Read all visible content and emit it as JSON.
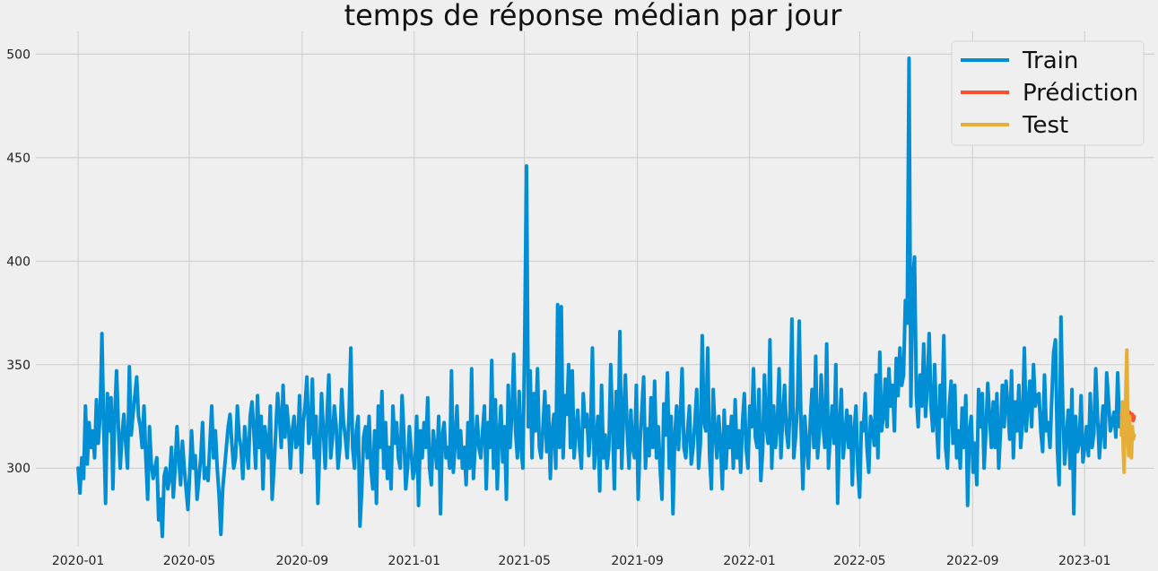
{
  "chart_data": {
    "type": "line",
    "title": "temps de réponse médian par jour",
    "xlabel": "",
    "ylabel": "",
    "x_range": [
      "2019-11-16",
      "2023-03-18"
    ],
    "ylim": [
      262,
      511
    ],
    "x_ticks": [
      "2020-01",
      "2020-05",
      "2020-09",
      "2021-01",
      "2021-05",
      "2021-09",
      "2022-01",
      "2022-05",
      "2022-09",
      "2023-01"
    ],
    "y_ticks": [
      300,
      350,
      400,
      450,
      500
    ],
    "grid": true,
    "legend_position": "top-right",
    "series": [
      {
        "name": "Train",
        "color": "#008fd5",
        "x_start": "2020-01-01",
        "x_end": "2023-02-10",
        "values": [
          300,
          288,
          305,
          295,
          330,
          302,
          322,
          310,
          318,
          305,
          333,
          312,
          325,
          365,
          320,
          283,
          336,
          318,
          334,
          290,
          325,
          347,
          320,
          300,
          316,
          326,
          312,
          300,
          349,
          316,
          326,
          335,
          344,
          325,
          320,
          310,
          330,
          305,
          285,
          320,
          302,
          295,
          300,
          305,
          275,
          285,
          267,
          296,
          300,
          290,
          295,
          310,
          286,
          300,
          320,
          305,
          292,
          313,
          300,
          290,
          280,
          298,
          318,
          300,
          306,
          285,
          295,
          305,
          322,
          295,
          300,
          294,
          312,
          330,
          305,
          318,
          300,
          287,
          268,
          290,
          300,
          310,
          320,
          326,
          312,
          300,
          305,
          330,
          315,
          310,
          295,
          320,
          310,
          300,
          325,
          332,
          318,
          300,
          335,
          310,
          325,
          290,
          320,
          312,
          305,
          330,
          285,
          300,
          318,
          336,
          325,
          310,
          340,
          315,
          330,
          320,
          300,
          318,
          325,
          310,
          312,
          335,
          298,
          322,
          330,
          344,
          312,
          318,
          343,
          305,
          325,
          283,
          310,
          336,
          318,
          300,
          325,
          345,
          305,
          315,
          330,
          320,
          300,
          310,
          338,
          322,
          315,
          305,
          325,
          358,
          310,
          300,
          318,
          325,
          272,
          290,
          315,
          320,
          305,
          325,
          300,
          290,
          318,
          283,
          330,
          310,
          337,
          300,
          322,
          295,
          310,
          290,
          330,
          312,
          322,
          305,
          300,
          335,
          316,
          290,
          300,
          320,
          308,
          295,
          300,
          325,
          282,
          318,
          305,
          322,
          310,
          334,
          300,
          292,
          318,
          310,
          300,
          325,
          278,
          316,
          322,
          305,
          310,
          300,
          347,
          298,
          312,
          330,
          305,
          318,
          300,
          310,
          292,
          322,
          300,
          348,
          295,
          312,
          325,
          310,
          305,
          318,
          330,
          290,
          322,
          310,
          352,
          300,
          333,
          290,
          316,
          330,
          303,
          320,
          285,
          340,
          310,
          326,
          355,
          318,
          305,
          337,
          310,
          300,
          362,
          446,
          320,
          347,
          305,
          336,
          318,
          348,
          310,
          305,
          320,
          337,
          308,
          330,
          295,
          318,
          326,
          300,
          379,
          310,
          378,
          305,
          335,
          326,
          350,
          310,
          347,
          305,
          318,
          328,
          310,
          300,
          336,
          320,
          326,
          306,
          318,
          358,
          300,
          312,
          325,
          289,
          340,
          305,
          316,
          300,
          310,
          350,
          322,
          290,
          337,
          310,
          366,
          300,
          325,
          345,
          318,
          300,
          328,
          310,
          305,
          340,
          285,
          312,
          328,
          344,
          300,
          319,
          306,
          334,
          310,
          342,
          305,
          320,
          300,
          285,
          331,
          316,
          346,
          300,
          325,
          278,
          315,
          330,
          309,
          325,
          348,
          310,
          305,
          318,
          330,
          302,
          310,
          322,
          338,
          300,
          312,
          364,
          322,
          318,
          358,
          306,
          290,
          338,
          318,
          305,
          325,
          312,
          290,
          328,
          300,
          320,
          310,
          325,
          300,
          333,
          305,
          318,
          298,
          322,
          336,
          310,
          300,
          330,
          320,
          348,
          315,
          310,
          338,
          294,
          308,
          345,
          320,
          312,
          362,
          300,
          330,
          310,
          320,
          348,
          305,
          325,
          340,
          318,
          310,
          328,
          372,
          305,
          315,
          330,
          371,
          320,
          290,
          325,
          312,
          300,
          322,
          338,
          310,
          354,
          305,
          318,
          345,
          320,
          310,
          360,
          300,
          318,
          330,
          312,
          350,
          283,
          320,
          338,
          305,
          315,
          328,
          310,
          325,
          292,
          318,
          330,
          300,
          286,
          322,
          318,
          336,
          310,
          298,
          325,
          320,
          311,
          345,
          305,
          356,
          318,
          325,
          343,
          320,
          348,
          330,
          340,
          318,
          353,
          335,
          358,
          340,
          345,
          381,
          370,
          498,
          330,
          390,
          402,
          335,
          320,
          345,
          330,
          360,
          325,
          340,
          365,
          330,
          318,
          350,
          322,
          305,
          340,
          325,
          364,
          310,
          300,
          330,
          342,
          312,
          340,
          305,
          318,
          300,
          329,
          310,
          335,
          282,
          318,
          325,
          298,
          312,
          292,
          338,
          320,
          336,
          300,
          318,
          341,
          325,
          310,
          332,
          310,
          336,
          300,
          318,
          340,
          320,
          342,
          330,
          314,
          347,
          305,
          332,
          318,
          340,
          310,
          322,
          358,
          318,
          330,
          342,
          320,
          350,
          330,
          335,
          336,
          318,
          308,
          345,
          318,
          322,
          310,
          334,
          356,
          362,
          310,
          292,
          373,
          330,
          302,
          315,
          328,
          300,
          338,
          278,
          325,
          308,
          312,
          335,
          303,
          310,
          320,
          306,
          336,
          310,
          317,
          348,
          325,
          305,
          318,
          330,
          310,
          346,
          332,
          318,
          322,
          327,
          315,
          346,
          320,
          325
        ]
      },
      {
        "name": "Prédiction",
        "color": "#fc4f30",
        "x_start": "2023-02-10",
        "x_end": "2023-02-24",
        "values": [
          326,
          323,
          325,
          327,
          324,
          322,
          326,
          325,
          323,
          327,
          325,
          324,
          326,
          323,
          325
        ]
      },
      {
        "name": "Test",
        "color": "#e5ae38",
        "x_start": "2023-02-10",
        "x_end": "2023-02-24",
        "values": [
          316,
          332,
          310,
          298,
          320,
          340,
          357,
          318,
          306,
          325,
          312,
          305,
          320,
          314,
          316
        ]
      }
    ]
  }
}
